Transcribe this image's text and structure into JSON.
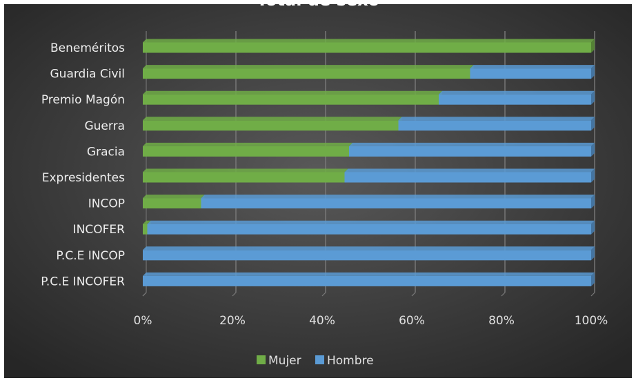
{
  "chart_data": {
    "type": "bar",
    "orientation": "horizontal",
    "stacked": "percent",
    "title": "Total de sexo",
    "categories": [
      "Beneméritos",
      "Guardia Civil",
      "Premio Magón",
      "Guerra",
      "Gracia",
      "Expresidentes",
      "INCOP",
      "INCOFER",
      "P.C.E INCOP",
      "P.C.E INCOFER"
    ],
    "series": [
      {
        "name": "Mujer",
        "color": "#70ad47",
        "values": [
          100,
          73,
          66,
          57,
          46,
          45,
          13,
          1,
          0,
          0
        ]
      },
      {
        "name": "Hombre",
        "color": "#5b9bd5",
        "values": [
          0,
          27,
          34,
          43,
          54,
          55,
          87,
          99,
          100,
          100
        ]
      }
    ],
    "x_ticks": [
      "0%",
      "20%",
      "40%",
      "60%",
      "80%",
      "100%"
    ],
    "xlim": [
      0,
      100
    ],
    "grid": true,
    "legend": "bottom",
    "background": "#3a3a3a"
  }
}
